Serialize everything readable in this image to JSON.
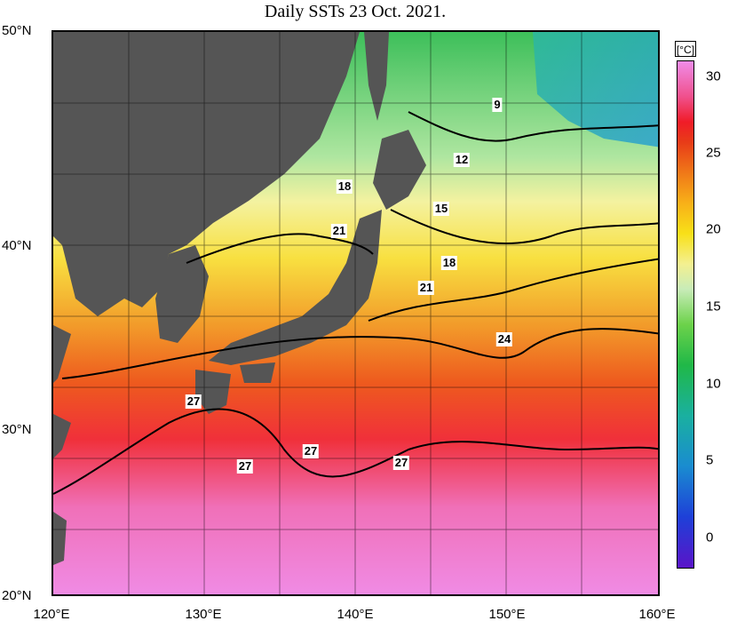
{
  "title": "Daily SSTs 23 Oct. 2021.",
  "map": {
    "lat_ticks": [
      "50°N",
      "40°N",
      "30°N",
      "20°N"
    ],
    "lon_ticks": [
      "120°E",
      "130°E",
      "140°E",
      "150°E",
      "160°E"
    ],
    "isotherm_labels": [
      "9",
      "12",
      "18",
      "15",
      "21",
      "18",
      "21",
      "24",
      "27",
      "27",
      "27",
      "27"
    ]
  },
  "colorbar": {
    "unit": "[°C]",
    "ticks": [
      "30",
      "25",
      "20",
      "15",
      "10",
      "5",
      "0"
    ]
  }
}
